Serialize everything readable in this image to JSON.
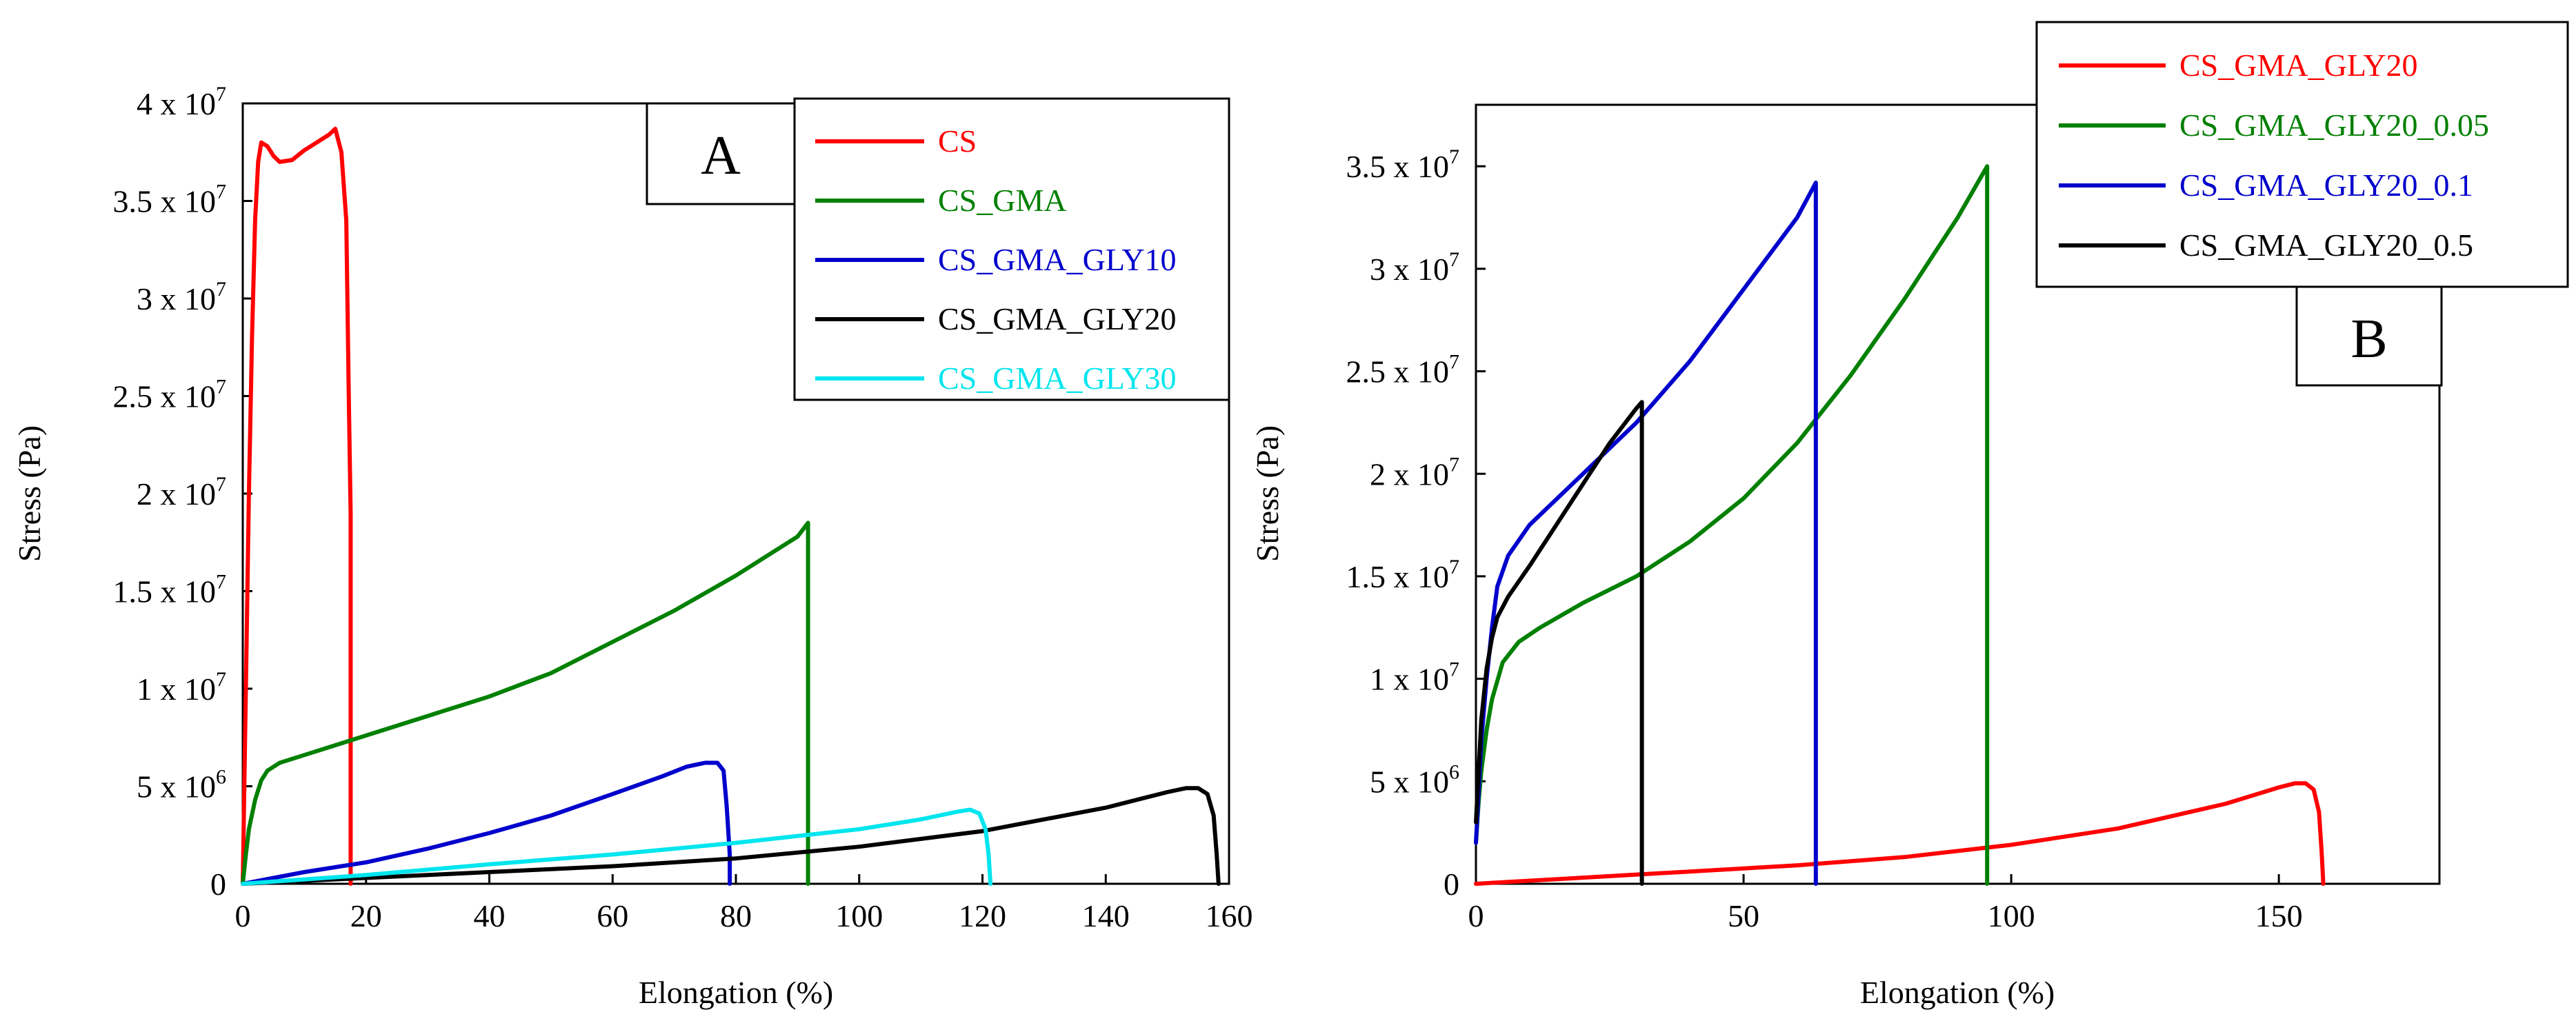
{
  "chart_data": [
    {
      "panel": "A",
      "type": "line",
      "xlabel": "Elongation (%)",
      "ylabel": "Stress (Pa)",
      "xlim": [
        0,
        160
      ],
      "ylim": [
        0,
        40000000
      ],
      "xticks": [
        0,
        20,
        40,
        60,
        80,
        100,
        120,
        140,
        160
      ],
      "xtick_labels": [
        "0",
        "20",
        "40",
        "60",
        "80",
        "100",
        "120",
        "140",
        "160"
      ],
      "yticks": [
        0,
        5000000,
        10000000,
        15000000,
        20000000,
        25000000,
        30000000,
        35000000,
        40000000
      ],
      "ytick_labels": [
        {
          "base": "0",
          "exp": ""
        },
        {
          "base": "5 x 10",
          "exp": "6"
        },
        {
          "base": "1 x 10",
          "exp": "7"
        },
        {
          "base": "1.5 x 10",
          "exp": "7"
        },
        {
          "base": "2 x 10",
          "exp": "7"
        },
        {
          "base": "2.5 x 10",
          "exp": "7"
        },
        {
          "base": "3 x 10",
          "exp": "7"
        },
        {
          "base": "3.5 x 10",
          "exp": "7"
        },
        {
          "base": "4 x 10",
          "exp": "7"
        }
      ],
      "legend_position": "top-right",
      "series": [
        {
          "name": "CS",
          "color": "#ff0000",
          "x": [
            0,
            0.5,
            1,
            1.5,
            2,
            2.5,
            3,
            4,
            5,
            6,
            8,
            10,
            12,
            14,
            15,
            16,
            16.8,
            17.2,
            17.5,
            17.5
          ],
          "y": [
            0,
            10000000,
            20000000,
            28000000,
            34000000,
            37000000,
            38000000,
            37800000,
            37300000,
            37000000,
            37100000,
            37600000,
            38000000,
            38400000,
            38700000,
            37500000,
            34000000,
            25000000,
            19000000,
            0
          ]
        },
        {
          "name": "CS_GMA",
          "color": "#008000",
          "x": [
            0,
            0.5,
            1,
            2,
            3,
            4,
            6,
            10,
            20,
            30,
            40,
            50,
            60,
            70,
            80,
            90,
            91.7,
            91.7
          ],
          "y": [
            0,
            1500000,
            2800000,
            4300000,
            5300000,
            5800000,
            6200000,
            6600000,
            7600000,
            8600000,
            9600000,
            10800000,
            12400000,
            14000000,
            15800000,
            17800000,
            18500000,
            0
          ]
        },
        {
          "name": "CS_GMA_GLY10",
          "color": "#0000cc",
          "x": [
            0,
            5,
            10,
            20,
            30,
            40,
            50,
            60,
            68,
            72,
            75,
            77,
            78,
            78.5,
            79,
            79
          ],
          "y": [
            0,
            300000,
            600000,
            1100000,
            1800000,
            2600000,
            3500000,
            4600000,
            5500000,
            6000000,
            6200000,
            6200000,
            5800000,
            4000000,
            1500000,
            0
          ]
        },
        {
          "name": "CS_GMA_GLY20",
          "color": "#000000",
          "x": [
            0,
            20,
            40,
            60,
            80,
            100,
            120,
            140,
            150,
            153,
            155,
            156.5,
            157.5,
            158,
            158.3
          ],
          "y": [
            0,
            300000,
            600000,
            900000,
            1300000,
            1900000,
            2700000,
            3900000,
            4700000,
            4900000,
            4900000,
            4600000,
            3500000,
            1500000,
            0
          ]
        },
        {
          "name": "CS_GMA_GLY30",
          "color": "#00e5ee",
          "x": [
            0,
            20,
            40,
            60,
            80,
            100,
            110,
            116,
            118,
            119.5,
            120.5,
            121,
            121.3
          ],
          "y": [
            0,
            450000,
            1000000,
            1500000,
            2100000,
            2800000,
            3300000,
            3700000,
            3800000,
            3600000,
            2800000,
            1500000,
            0
          ]
        }
      ],
      "annotations": [
        {
          "text": "A"
        }
      ]
    },
    {
      "panel": "B",
      "type": "line",
      "xlabel": "Elongation (%)",
      "ylabel": "Stress (Pa)",
      "xlim": [
        0,
        180
      ],
      "ylim": [
        0,
        38000000
      ],
      "xticks": [
        0,
        50,
        100,
        150
      ],
      "xtick_labels": [
        "0",
        "50",
        "100",
        "150"
      ],
      "yticks": [
        0,
        5000000,
        10000000,
        15000000,
        20000000,
        25000000,
        30000000,
        35000000
      ],
      "ytick_labels": [
        {
          "base": "0",
          "exp": ""
        },
        {
          "base": "5 x 10",
          "exp": "6"
        },
        {
          "base": "1 x 10",
          "exp": "7"
        },
        {
          "base": "1.5 x 10",
          "exp": "7"
        },
        {
          "base": "2 x 10",
          "exp": "7"
        },
        {
          "base": "2.5 x 10",
          "exp": "7"
        },
        {
          "base": "3 x 10",
          "exp": "7"
        },
        {
          "base": "3.5 x 10",
          "exp": "7"
        }
      ],
      "legend_position": "top-right",
      "series": [
        {
          "name": "CS_GMA_GLY20",
          "color": "#ff0000",
          "x": [
            0,
            20,
            40,
            60,
            80,
            100,
            120,
            140,
            150,
            153,
            155,
            156.5,
            157.5,
            158,
            158.3
          ],
          "y": [
            0,
            300000,
            600000,
            900000,
            1300000,
            1900000,
            2700000,
            3900000,
            4700000,
            4900000,
            4900000,
            4600000,
            3500000,
            1500000,
            0
          ]
        },
        {
          "name": "CS_GMA_GLY20_0.05",
          "color": "#008000",
          "x": [
            0,
            0.5,
            1,
            2,
            3,
            5,
            8,
            12,
            20,
            30,
            40,
            50,
            60,
            70,
            80,
            90,
            95.5,
            95.5
          ],
          "y": [
            2000000,
            4000000,
            5500000,
            7500000,
            9000000,
            10800000,
            11800000,
            12500000,
            13700000,
            15000000,
            16700000,
            18800000,
            21500000,
            24800000,
            28500000,
            32500000,
            35000000,
            0
          ]
        },
        {
          "name": "CS_GMA_GLY20_0.1",
          "color": "#0000cc",
          "x": [
            0,
            0.5,
            1,
            2,
            3,
            4,
            6,
            10,
            20,
            30,
            40,
            50,
            60,
            63.5,
            63.5
          ],
          "y": [
            2000000,
            4500000,
            7000000,
            10000000,
            12500000,
            14500000,
            16000000,
            17500000,
            20000000,
            22500000,
            25500000,
            29000000,
            32500000,
            34200000,
            0
          ]
        },
        {
          "name": "CS_GMA_GLY20_0.5",
          "color": "#000000",
          "x": [
            0,
            0.5,
            1,
            2,
            3,
            4,
            6,
            10,
            15,
            20,
            25,
            30,
            31,
            31
          ],
          "y": [
            3000000,
            5500000,
            8000000,
            10500000,
            12000000,
            13000000,
            14000000,
            15500000,
            17500000,
            19500000,
            21500000,
            23200000,
            23500000,
            0
          ]
        }
      ],
      "annotations": [
        {
          "text": "B"
        }
      ]
    }
  ]
}
